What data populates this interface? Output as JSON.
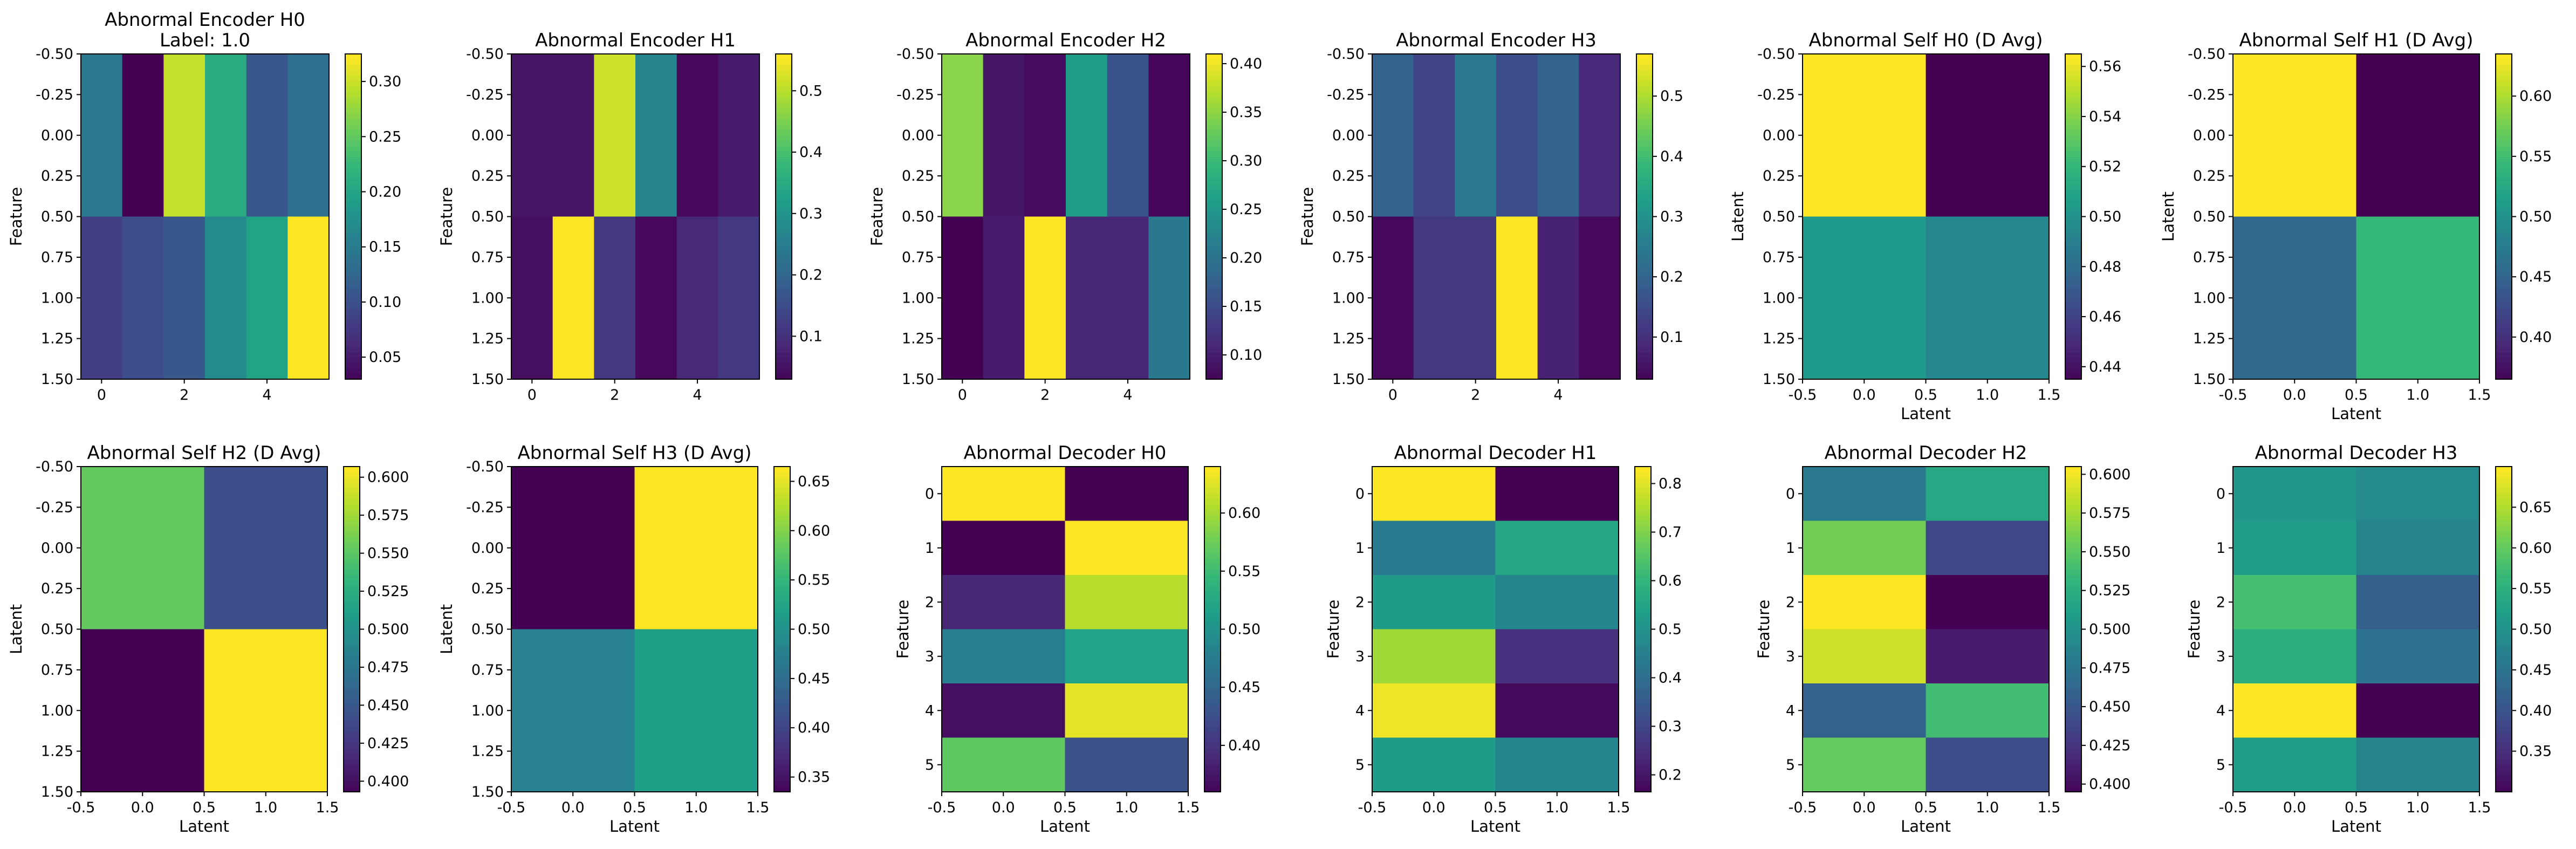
{
  "chart_data": [
    {
      "type": "heatmap",
      "title": "Abnormal Encoder H0",
      "subtitle": "Label: 1.0",
      "xlabel": "",
      "ylabel": "Feature",
      "x_ticks": [
        "0",
        "2",
        "4"
      ],
      "y_ticks": [
        "-0.50",
        "-0.25",
        "0.00",
        "0.25",
        "0.50",
        "0.75",
        "1.00",
        "1.25",
        "1.50"
      ],
      "colorbar_ticks": [
        "0.05",
        "0.10",
        "0.15",
        "0.20",
        "0.25",
        "0.30"
      ],
      "vmin": 0.03,
      "vmax": 0.325,
      "values": [
        [
          0.15,
          0.03,
          0.3,
          0.21,
          0.11,
          0.14
        ],
        [
          0.085,
          0.1,
          0.11,
          0.17,
          0.2,
          0.325
        ]
      ]
    },
    {
      "type": "heatmap",
      "title": "Abnormal Encoder H1",
      "subtitle": "",
      "xlabel": "",
      "ylabel": "Feature",
      "x_ticks": [
        "0",
        "2",
        "4"
      ],
      "y_ticks": [
        "-0.50",
        "-0.25",
        "0.00",
        "0.25",
        "0.50",
        "0.75",
        "1.00",
        "1.25",
        "1.50"
      ],
      "colorbar_ticks": [
        "0.1",
        "0.2",
        "0.3",
        "0.4",
        "0.5"
      ],
      "vmin": 0.03,
      "vmax": 0.56,
      "values": [
        [
          0.06,
          0.06,
          0.52,
          0.27,
          0.04,
          0.07
        ],
        [
          0.05,
          0.56,
          0.12,
          0.04,
          0.09,
          0.12
        ]
      ]
    },
    {
      "type": "heatmap",
      "title": "Abnormal Encoder H2",
      "subtitle": "",
      "xlabel": "",
      "ylabel": "Feature",
      "x_ticks": [
        "0",
        "2",
        "4"
      ],
      "y_ticks": [
        "-0.50",
        "-0.25",
        "0.00",
        "0.25",
        "0.50",
        "0.75",
        "1.00",
        "1.25",
        "1.50"
      ],
      "colorbar_ticks": [
        "0.10",
        "0.15",
        "0.20",
        "0.25",
        "0.30",
        "0.35",
        "0.40"
      ],
      "vmin": 0.075,
      "vmax": 0.41,
      "values": [
        [
          0.35,
          0.095,
          0.085,
          0.26,
          0.16,
          0.08
        ],
        [
          0.075,
          0.1,
          0.41,
          0.11,
          0.11,
          0.21
        ]
      ]
    },
    {
      "type": "heatmap",
      "title": "Abnormal Encoder H3",
      "subtitle": "",
      "xlabel": "",
      "ylabel": "Feature",
      "x_ticks": [
        "0",
        "2",
        "4"
      ],
      "y_ticks": [
        "-0.50",
        "-0.25",
        "0.00",
        "0.25",
        "0.50",
        "0.75",
        "1.00",
        "1.25",
        "1.50"
      ],
      "colorbar_ticks": [
        "0.1",
        "0.2",
        "0.3",
        "0.4",
        "0.5"
      ],
      "vmin": 0.03,
      "vmax": 0.57,
      "values": [
        [
          0.2,
          0.14,
          0.25,
          0.16,
          0.2,
          0.09
        ],
        [
          0.04,
          0.12,
          0.12,
          0.57,
          0.08,
          0.04
        ]
      ]
    },
    {
      "type": "heatmap",
      "title": "Abnormal Self H0 (D Avg)",
      "subtitle": "",
      "xlabel": "Latent",
      "ylabel": "Latent",
      "x_ticks": [
        "-0.5",
        "0.0",
        "0.5",
        "1.0",
        "1.5"
      ],
      "y_ticks": [
        "-0.50",
        "-0.25",
        "0.00",
        "0.25",
        "0.50",
        "0.75",
        "1.00",
        "1.25",
        "1.50"
      ],
      "colorbar_ticks": [
        "0.44",
        "0.46",
        "0.48",
        "0.50",
        "0.52",
        "0.54",
        "0.56"
      ],
      "vmin": 0.435,
      "vmax": 0.565,
      "values": [
        [
          0.565,
          0.435
        ],
        [
          0.505,
          0.495
        ]
      ]
    },
    {
      "type": "heatmap",
      "title": "Abnormal Self H1 (D Avg)",
      "subtitle": "",
      "xlabel": "Latent",
      "ylabel": "Latent",
      "x_ticks": [
        "-0.5",
        "0.0",
        "0.5",
        "1.0",
        "1.5"
      ],
      "y_ticks": [
        "-0.50",
        "-0.25",
        "0.00",
        "0.25",
        "0.50",
        "0.75",
        "1.00",
        "1.25",
        "1.50"
      ],
      "colorbar_ticks": [
        "0.40",
        "0.45",
        "0.50",
        "0.55",
        "0.60"
      ],
      "vmin": 0.365,
      "vmax": 0.635,
      "values": [
        [
          0.635,
          0.365
        ],
        [
          0.455,
          0.545
        ]
      ]
    },
    {
      "type": "heatmap",
      "title": "Abnormal Self H2 (D Avg)",
      "subtitle": "",
      "xlabel": "Latent",
      "ylabel": "Latent",
      "x_ticks": [
        "-0.5",
        "0.0",
        "0.5",
        "1.0",
        "1.5"
      ],
      "y_ticks": [
        "-0.50",
        "-0.25",
        "0.00",
        "0.25",
        "0.50",
        "0.75",
        "1.00",
        "1.25",
        "1.50"
      ],
      "colorbar_ticks": [
        "0.400",
        "0.425",
        "0.450",
        "0.475",
        "0.500",
        "0.525",
        "0.550",
        "0.575",
        "0.600"
      ],
      "vmin": 0.393,
      "vmax": 0.607,
      "values": [
        [
          0.555,
          0.445
        ],
        [
          0.393,
          0.607
        ]
      ]
    },
    {
      "type": "heatmap",
      "title": "Abnormal Self H3 (D Avg)",
      "subtitle": "",
      "xlabel": "Latent",
      "ylabel": "Latent",
      "x_ticks": [
        "-0.5",
        "0.0",
        "0.5",
        "1.0",
        "1.5"
      ],
      "y_ticks": [
        "-0.50",
        "-0.25",
        "0.00",
        "0.25",
        "0.50",
        "0.75",
        "1.00",
        "1.25",
        "1.50"
      ],
      "colorbar_ticks": [
        "0.35",
        "0.40",
        "0.45",
        "0.50",
        "0.55",
        "0.60",
        "0.65"
      ],
      "vmin": 0.335,
      "vmax": 0.665,
      "values": [
        [
          0.335,
          0.665
        ],
        [
          0.48,
          0.52
        ]
      ]
    },
    {
      "type": "heatmap",
      "title": "Abnormal Decoder H0",
      "subtitle": "",
      "xlabel": "Latent",
      "ylabel": "Feature",
      "x_ticks": [
        "-0.5",
        "0.0",
        "0.5",
        "1.0",
        "1.5"
      ],
      "y_ticks": [
        "0",
        "1",
        "2",
        "3",
        "4",
        "5"
      ],
      "colorbar_ticks": [
        "0.40",
        "0.45",
        "0.50",
        "0.55",
        "0.60"
      ],
      "vmin": 0.36,
      "vmax": 0.64,
      "values": [
        [
          0.64,
          0.36
        ],
        [
          0.36,
          0.64
        ],
        [
          0.39,
          0.61
        ],
        [
          0.48,
          0.52
        ],
        [
          0.37,
          0.63
        ],
        [
          0.57,
          0.43
        ]
      ]
    },
    {
      "type": "heatmap",
      "title": "Abnormal Decoder H1",
      "subtitle": "",
      "xlabel": "Latent",
      "ylabel": "Feature",
      "x_ticks": [
        "-0.5",
        "0.0",
        "0.5",
        "1.0",
        "1.5"
      ],
      "y_ticks": [
        "0",
        "1",
        "2",
        "3",
        "4",
        "5"
      ],
      "colorbar_ticks": [
        "0.2",
        "0.3",
        "0.4",
        "0.5",
        "0.6",
        "0.7",
        "0.8"
      ],
      "vmin": 0.165,
      "vmax": 0.835,
      "values": [
        [
          0.835,
          0.165
        ],
        [
          0.44,
          0.56
        ],
        [
          0.53,
          0.47
        ],
        [
          0.74,
          0.26
        ],
        [
          0.82,
          0.18
        ],
        [
          0.53,
          0.47
        ]
      ]
    },
    {
      "type": "heatmap",
      "title": "Abnormal Decoder H2",
      "subtitle": "",
      "xlabel": "Latent",
      "ylabel": "Feature",
      "x_ticks": [
        "-0.5",
        "0.0",
        "0.5",
        "1.0",
        "1.5"
      ],
      "y_ticks": [
        "0",
        "1",
        "2",
        "3",
        "4",
        "5"
      ],
      "colorbar_ticks": [
        "0.400",
        "0.425",
        "0.450",
        "0.475",
        "0.500",
        "0.525",
        "0.550",
        "0.575",
        "0.600"
      ],
      "vmin": 0.395,
      "vmax": 0.605,
      "values": [
        [
          0.48,
          0.52
        ],
        [
          0.56,
          0.44
        ],
        [
          0.605,
          0.395
        ],
        [
          0.59,
          0.41
        ],
        [
          0.46,
          0.54
        ],
        [
          0.555,
          0.445
        ]
      ]
    },
    {
      "type": "heatmap",
      "title": "Abnormal Decoder H3",
      "subtitle": "",
      "xlabel": "Latent",
      "ylabel": "Feature",
      "x_ticks": [
        "-0.5",
        "0.0",
        "0.5",
        "1.0",
        "1.5"
      ],
      "y_ticks": [
        "0",
        "1",
        "2",
        "3",
        "4",
        "5"
      ],
      "colorbar_ticks": [
        "0.35",
        "0.40",
        "0.45",
        "0.50",
        "0.55",
        "0.60",
        "0.65"
      ],
      "vmin": 0.3,
      "vmax": 0.7,
      "values": [
        [
          0.51,
          0.49
        ],
        [
          0.52,
          0.48
        ],
        [
          0.58,
          0.42
        ],
        [
          0.55,
          0.45
        ],
        [
          0.7,
          0.3
        ],
        [
          0.52,
          0.48
        ]
      ]
    }
  ]
}
